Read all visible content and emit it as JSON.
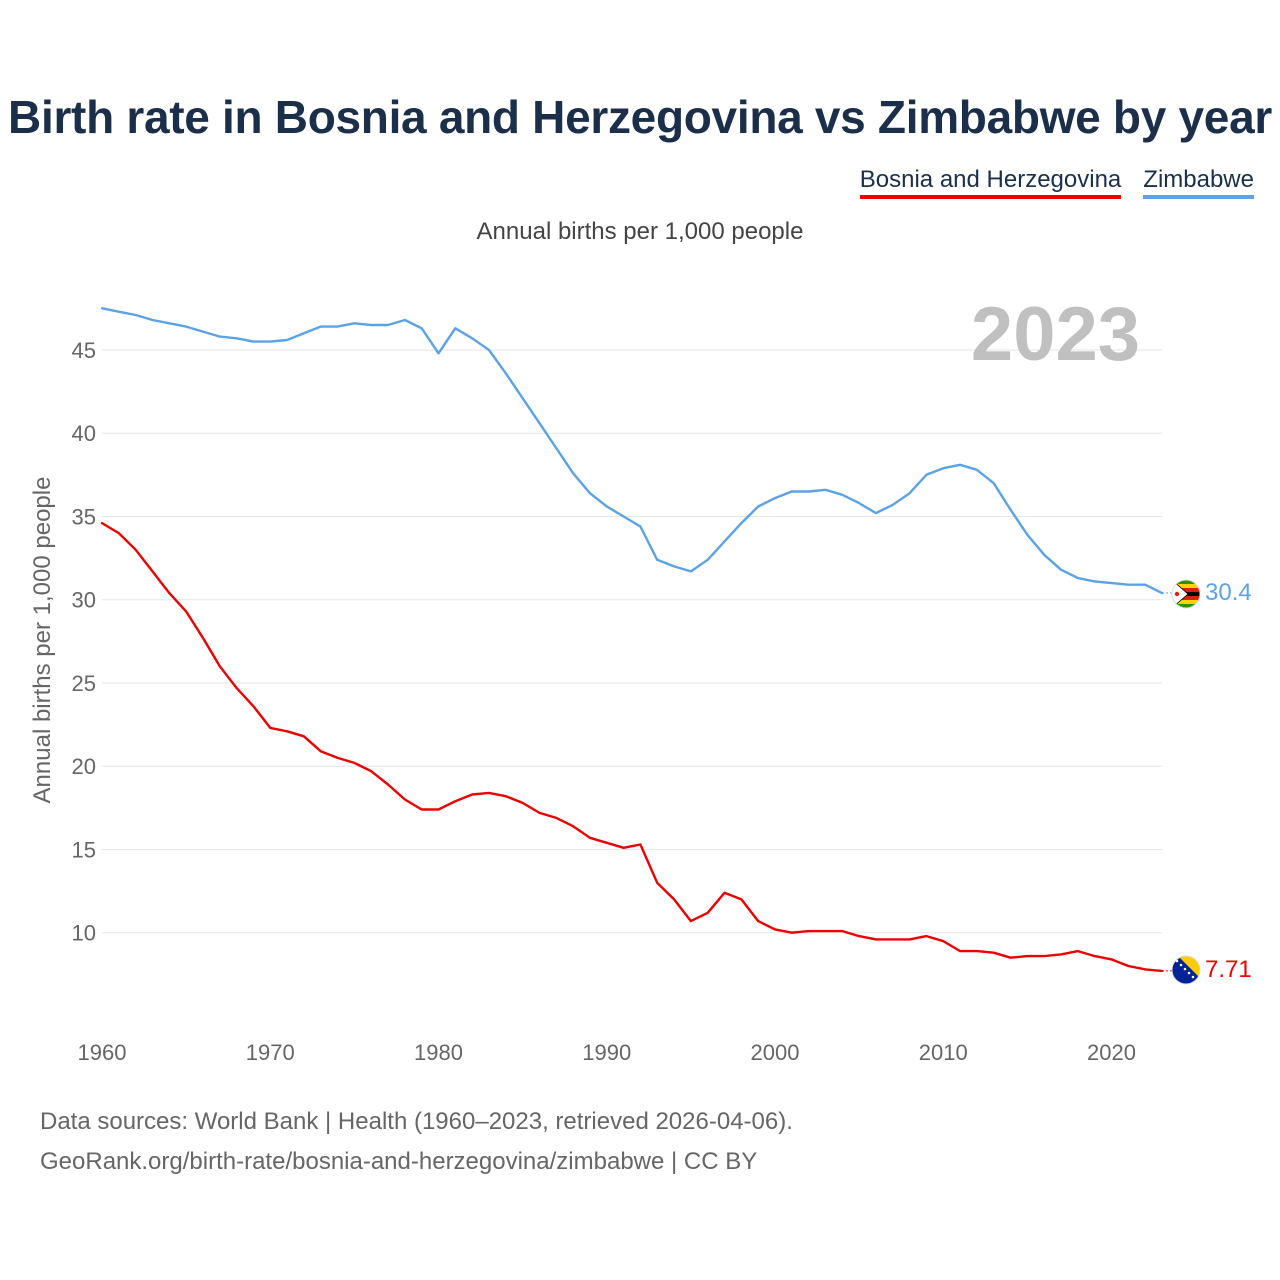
{
  "header": {
    "title": "Birth rate in Bosnia and Herzegovina vs Zimbabwe by year",
    "subtitle": "Annual births per 1,000 people"
  },
  "legend": {
    "items": [
      {
        "label": "Bosnia and Herzegovina",
        "color": "#ee0000"
      },
      {
        "label": "Zimbabwe",
        "color": "#5ba3e6"
      }
    ]
  },
  "footer": {
    "line1": "Data sources: World Bank | Health (1960–2023, retrieved 2026-04-06).",
    "line2": "GeoRank.org/birth-rate/bosnia-and-herzegovina/zimbabwe | CC BY"
  },
  "chart_data": {
    "type": "line",
    "title": "Birth rate in Bosnia and Herzegovina vs Zimbabwe by year",
    "xlabel": "",
    "ylabel": "Annual births per 1,000 people",
    "year_label": "2023",
    "xlim": [
      1960,
      2023
    ],
    "ylim": [
      5,
      48
    ],
    "x_ticks": [
      1960,
      1970,
      1980,
      1990,
      2000,
      2010,
      2020
    ],
    "y_ticks": [
      10,
      15,
      20,
      25,
      30,
      35,
      40,
      45
    ],
    "grid": true,
    "x": [
      1960,
      1961,
      1962,
      1963,
      1964,
      1965,
      1966,
      1967,
      1968,
      1969,
      1970,
      1971,
      1972,
      1973,
      1974,
      1975,
      1976,
      1977,
      1978,
      1979,
      1980,
      1981,
      1982,
      1983,
      1984,
      1985,
      1986,
      1987,
      1988,
      1989,
      1990,
      1991,
      1992,
      1993,
      1994,
      1995,
      1996,
      1997,
      1998,
      1999,
      2000,
      2001,
      2002,
      2003,
      2004,
      2005,
      2006,
      2007,
      2008,
      2009,
      2010,
      2011,
      2012,
      2013,
      2014,
      2015,
      2016,
      2017,
      2018,
      2019,
      2020,
      2021,
      2022,
      2023
    ],
    "series": [
      {
        "name": "Bosnia and Herzegovina",
        "color": "#ee0000",
        "end_label": "7.71",
        "values": [
          34.6,
          34.0,
          33.0,
          31.7,
          30.4,
          29.3,
          27.7,
          26.0,
          24.7,
          23.6,
          22.3,
          22.1,
          21.8,
          20.9,
          20.5,
          20.2,
          19.7,
          18.9,
          18.0,
          17.4,
          17.4,
          17.9,
          18.3,
          18.4,
          18.2,
          17.8,
          17.2,
          16.9,
          16.4,
          15.7,
          15.4,
          15.1,
          15.3,
          13.0,
          12.0,
          10.7,
          11.2,
          12.4,
          12.0,
          10.7,
          10.2,
          10.0,
          10.1,
          10.1,
          10.1,
          9.8,
          9.6,
          9.6,
          9.6,
          9.8,
          9.5,
          8.9,
          8.9,
          8.8,
          8.5,
          8.6,
          8.6,
          8.7,
          8.9,
          8.6,
          8.4,
          8.0,
          7.8,
          7.71
        ]
      },
      {
        "name": "Zimbabwe",
        "color": "#5ba3e6",
        "end_label": "30.4",
        "values": [
          47.5,
          47.3,
          47.1,
          46.8,
          46.6,
          46.4,
          46.1,
          45.8,
          45.7,
          45.5,
          45.5,
          45.6,
          46.0,
          46.4,
          46.4,
          46.6,
          46.5,
          46.5,
          46.8,
          46.3,
          44.8,
          46.3,
          45.7,
          45.0,
          43.6,
          42.1,
          40.6,
          39.1,
          37.6,
          36.4,
          35.6,
          35.0,
          34.4,
          32.4,
          32.0,
          31.7,
          32.4,
          33.5,
          34.6,
          35.6,
          36.1,
          36.5,
          36.5,
          36.6,
          36.3,
          35.8,
          35.2,
          35.7,
          36.4,
          37.5,
          37.9,
          38.1,
          37.8,
          37.0,
          35.4,
          33.9,
          32.7,
          31.8,
          31.3,
          31.1,
          31.0,
          30.9,
          30.9,
          30.4
        ]
      }
    ]
  }
}
